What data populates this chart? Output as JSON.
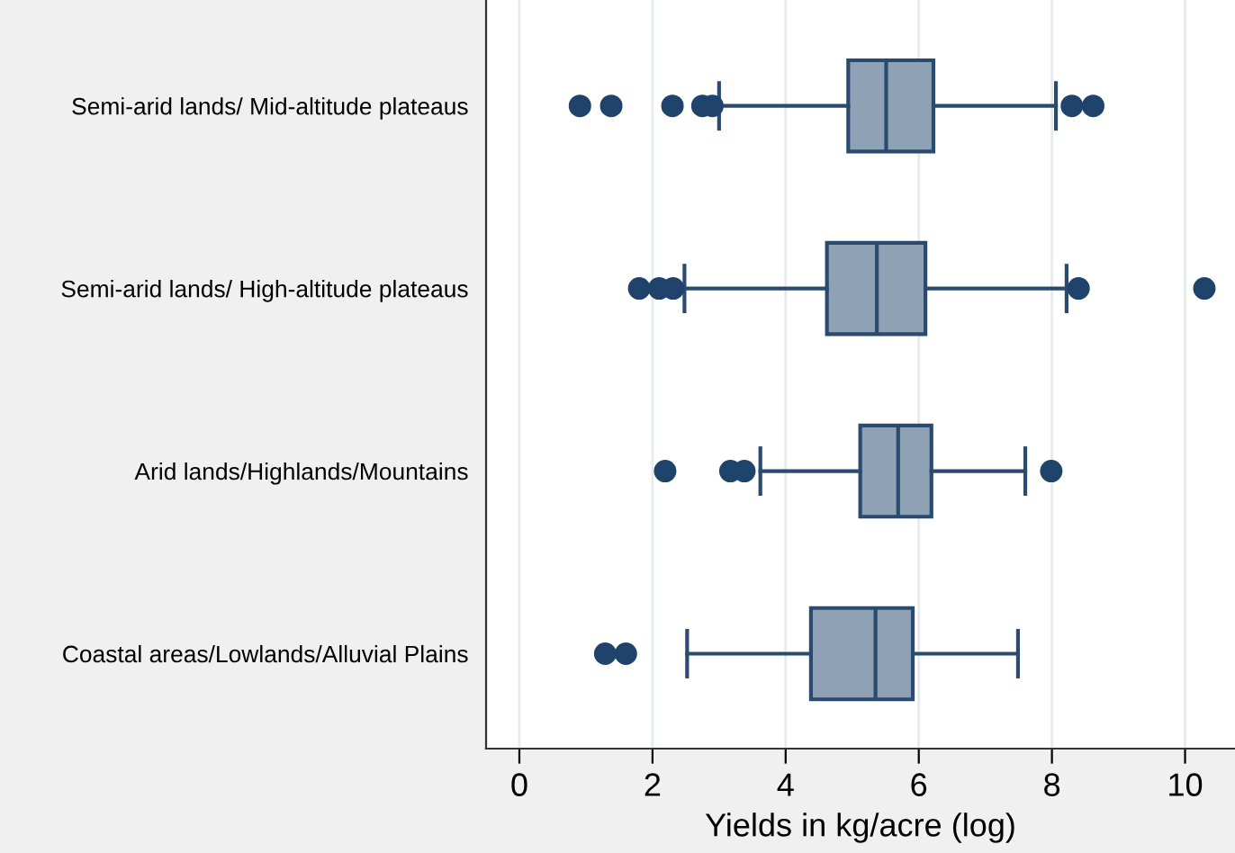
{
  "chart_data": {
    "type": "box",
    "orientation": "horizontal",
    "xlabel": "Yields in kg/acre (log)",
    "categories": [
      "Semi-arid lands/ Mid-altitude plateaus",
      "Semi-arid lands/ High-altitude plateaus",
      "Arid lands/Highlands/Mountains",
      "Coastal areas/Lowlands/Alluvial Plains"
    ],
    "boxes": [
      {
        "low": 3.0,
        "q1": 4.94,
        "median": 5.51,
        "q3": 6.22,
        "high": 8.06,
        "outliers": [
          0.91,
          1.38,
          2.3,
          2.75,
          2.9,
          8.3,
          8.62
        ]
      },
      {
        "low": 2.48,
        "q1": 4.62,
        "median": 5.37,
        "q3": 6.1,
        "high": 8.22,
        "outliers": [
          1.8,
          2.1,
          2.31,
          8.4,
          10.29
        ]
      },
      {
        "low": 3.62,
        "q1": 5.12,
        "median": 5.69,
        "q3": 6.19,
        "high": 7.6,
        "outliers": [
          2.19,
          3.17,
          3.38,
          7.99
        ]
      },
      {
        "low": 2.52,
        "q1": 4.38,
        "median": 5.35,
        "q3": 5.91,
        "high": 7.49,
        "outliers": [
          1.29,
          1.6
        ]
      }
    ],
    "color": "#8fa1b5",
    "xlim": [
      -0.5,
      10.75
    ],
    "xticks": [
      0,
      2,
      4,
      6,
      8,
      10
    ],
    "grid": "x"
  }
}
